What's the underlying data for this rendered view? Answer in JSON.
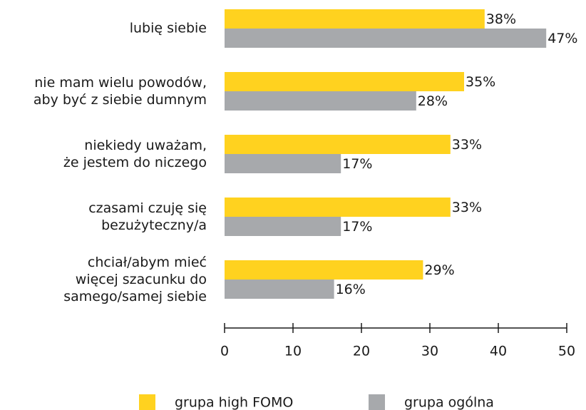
{
  "chart_data": {
    "type": "bar",
    "orientation": "horizontal",
    "categories": [
      "lubię siebie",
      "nie mam wielu powodów,\naby być z siebie dumnym",
      "niekiedy uważam,\nże jestem do niczego",
      "czasami czuję się\nbezużyteczny/a",
      "chciał/abym mieć\nwięcej szacunku do\nsamego/samej siebie"
    ],
    "series": [
      {
        "name": "grupa high FOMO",
        "color": "#ffd21f",
        "values": [
          38,
          35,
          33,
          33,
          29
        ],
        "value_labels": [
          "38%",
          "35%",
          "33%",
          "33%",
          "29%"
        ]
      },
      {
        "name": "grupa ogólna",
        "color": "#a7a9ac",
        "values": [
          47,
          28,
          17,
          17,
          16
        ],
        "value_labels": [
          "47%",
          "28%",
          "17%",
          "17%",
          "16%"
        ]
      }
    ],
    "xlim": [
      0,
      50
    ],
    "xticks": [
      0,
      10,
      20,
      30,
      40,
      50
    ],
    "legend": "bottom"
  }
}
